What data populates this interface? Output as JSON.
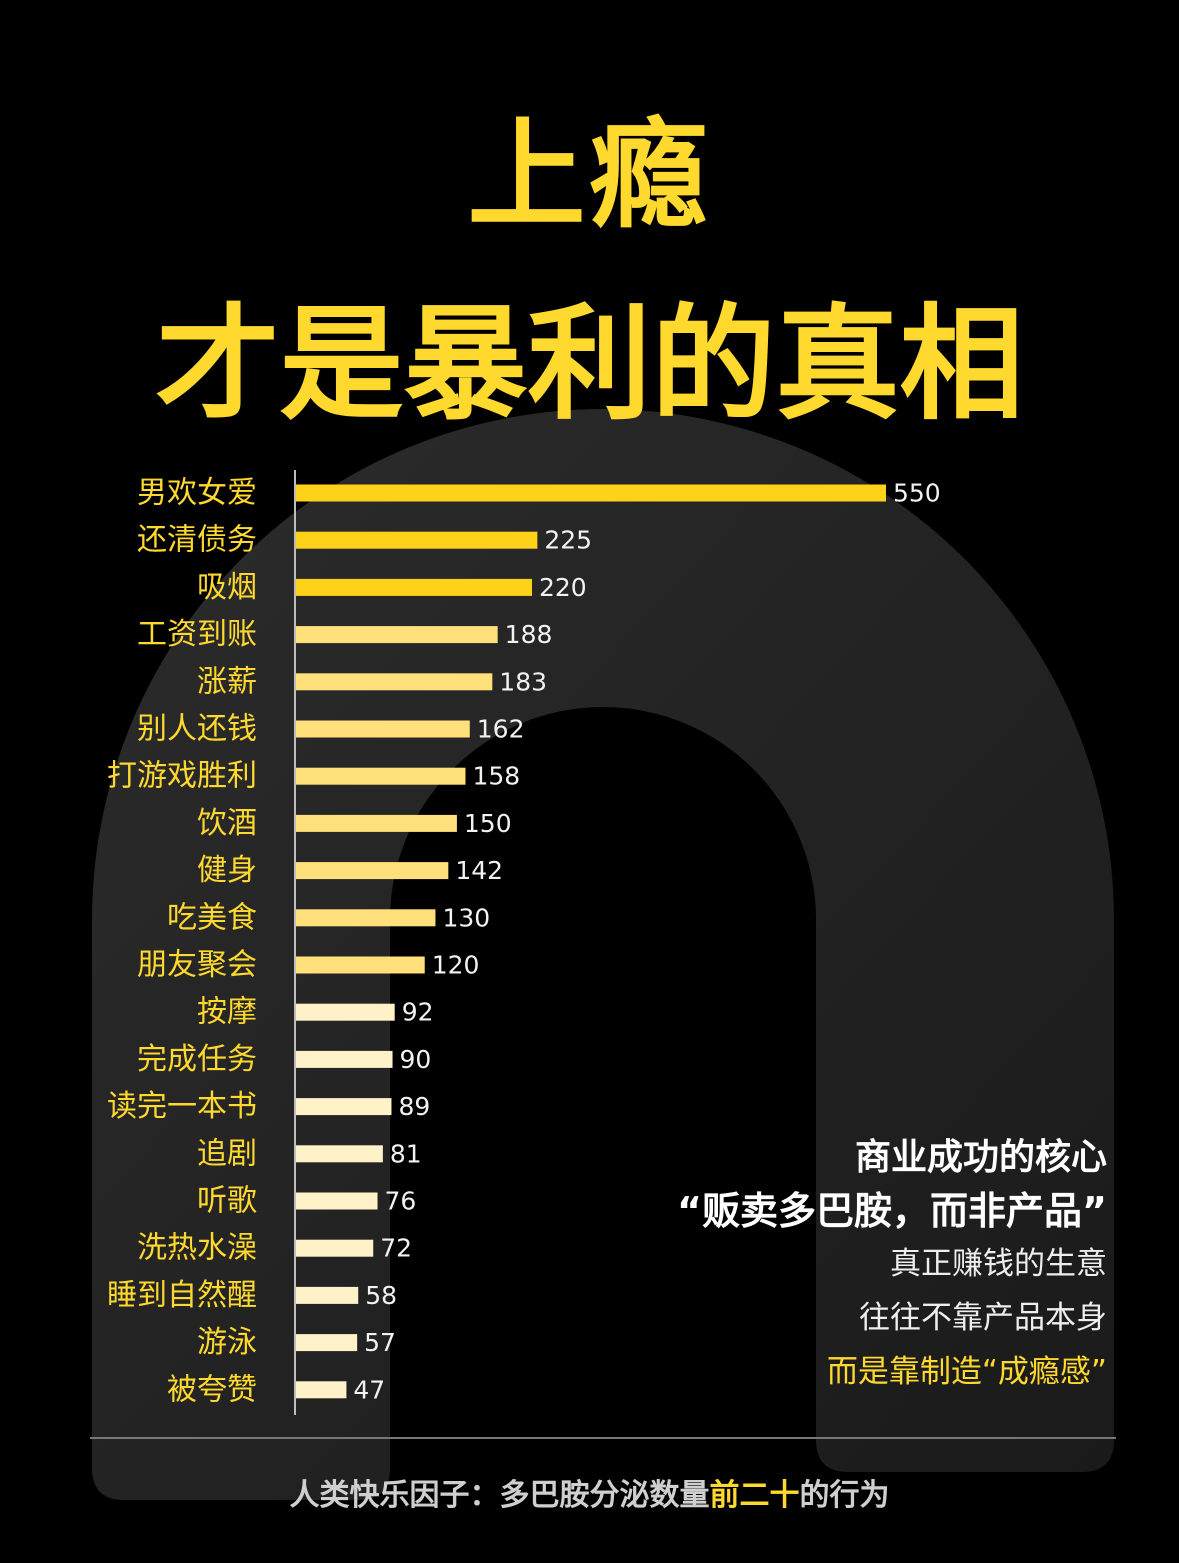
{
  "title": {
    "line1": "上瘾",
    "line2": "才是暴利的真相"
  },
  "chart_data": {
    "type": "bar",
    "orientation": "horizontal",
    "categories": [
      "男欢女爱",
      "还清债务",
      "吸烟",
      "工资到账",
      "涨薪",
      "别人还钱",
      "打游戏胜利",
      "饮酒",
      "健身",
      "吃美食",
      "朋友聚会",
      "按摩",
      "完成任务",
      "读完一本书",
      "追剧",
      "听歌",
      "洗热水澡",
      "睡到自然醒",
      "游泳",
      "被夸赞"
    ],
    "values": [
      550,
      225,
      220,
      188,
      183,
      162,
      158,
      150,
      142,
      130,
      120,
      92,
      90,
      89,
      81,
      76,
      72,
      58,
      57,
      47
    ],
    "colors": [
      "#FFD21A",
      "#FFD21A",
      "#FFD21A",
      "#FFE07A",
      "#FFE07A",
      "#FFE07A",
      "#FFE07A",
      "#FFE07A",
      "#FFE07A",
      "#FFE07A",
      "#FFE07A",
      "#FFF2C8",
      "#FFF2C8",
      "#FFF2C8",
      "#FFF2C8",
      "#FFF2C8",
      "#FFF2C8",
      "#FFF2C8",
      "#FFF2C8",
      "#FFF2C8"
    ],
    "xlim": [
      0,
      550
    ]
  },
  "side_text": {
    "line1": "商业成功的核心",
    "line2": "“贩卖多巴胺，而非产品”",
    "line3": "真正赚钱的生意",
    "line4": "往往不靠产品本身",
    "line5": "而是靠制造“成瘾感”"
  },
  "footer": {
    "prefix": "人类快乐因子：多巴胺分泌数量",
    "highlight": "前二十",
    "suffix": "的行为"
  },
  "colors": {
    "accent": "#FFD92E",
    "background": "#000000",
    "arch": "#232323"
  }
}
